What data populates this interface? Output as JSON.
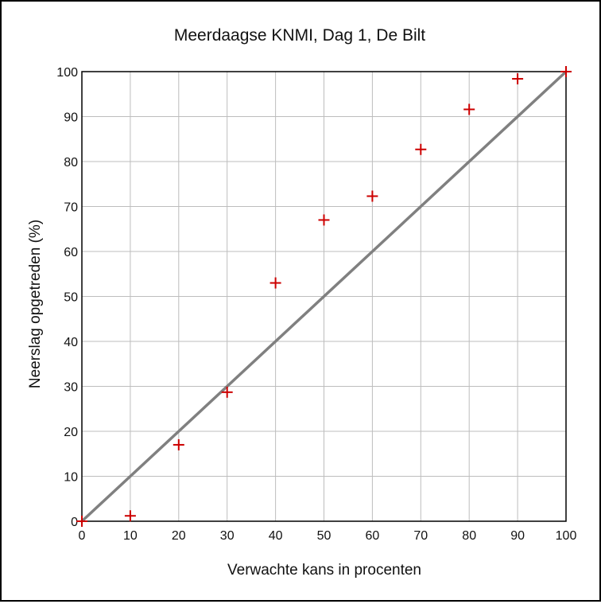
{
  "chart_data": {
    "type": "scatter",
    "title": "Meerdaagse KNMI, Dag 1, De Bilt",
    "xlabel": "Verwachte kans in procenten",
    "ylabel": "Neerslag opgetreden (%)",
    "xlim": [
      0,
      100
    ],
    "ylim": [
      0,
      100
    ],
    "xticks": [
      0,
      10,
      20,
      30,
      40,
      50,
      60,
      70,
      80,
      90,
      100
    ],
    "yticks": [
      0,
      10,
      20,
      30,
      40,
      50,
      60,
      70,
      80,
      90,
      100
    ],
    "grid": true,
    "series": [
      {
        "x": [
          0,
          10,
          20,
          30,
          40,
          50,
          60,
          70,
          80,
          90,
          100
        ],
        "y": [
          0,
          1.2,
          17,
          28.7,
          53,
          67,
          72.3,
          82.7,
          91.6,
          98.4,
          100
        ],
        "marker": "plus",
        "color": "#cc0000"
      }
    ],
    "reference_line": {
      "x": [
        0,
        100
      ],
      "y": [
        0,
        100
      ],
      "color": "#808080"
    }
  }
}
